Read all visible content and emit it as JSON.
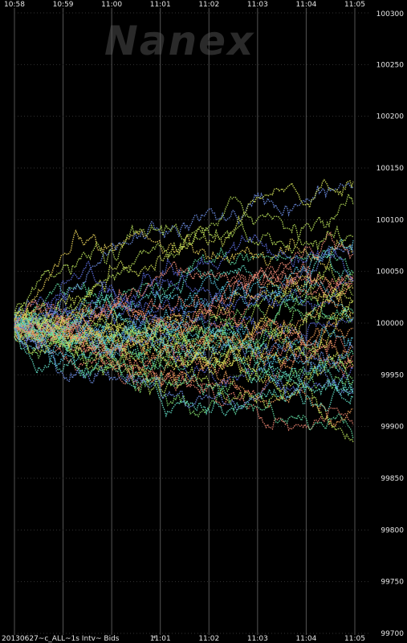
{
  "chart_data": {
    "type": "scatter",
    "title": "",
    "watermark": "Nanex",
    "footer_label": "20130627~c_ALL~1s Intv~ Bids",
    "footer_marker": "*",
    "xlabel": "",
    "ylabel": "",
    "x_ticks_top": [
      "10:58",
      "10:59",
      "11:00",
      "11:01",
      "11:02",
      "11:03",
      "11:04",
      "11:05"
    ],
    "x_ticks_bottom": [
      "11:01",
      "11:02",
      "11:03",
      "11:04",
      "11:05"
    ],
    "y_ticks": [
      100300,
      100250,
      100200,
      100150,
      100100,
      100050,
      100000,
      99950,
      99900,
      99850,
      99800,
      99750,
      99700
    ],
    "ylim": [
      99700,
      100300
    ],
    "xlim": [
      "10:58",
      "11:05"
    ],
    "grid": true,
    "background": "#000000",
    "grid_color": "#555555",
    "series_colors": [
      "#e8826e",
      "#f0a05a",
      "#e8d25a",
      "#b8e05a",
      "#7ed66a",
      "#5fd8a0",
      "#58c8e0",
      "#6a8ce0",
      "#5a6ad8",
      "#f28c78",
      "#d6e65a",
      "#63e0c8"
    ],
    "series_description_note": ""
  }
}
